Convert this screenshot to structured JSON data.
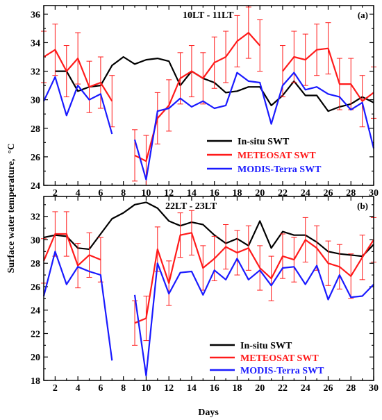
{
  "figure": {
    "ylabel": "Surface water temperature,",
    "ylabel_unit": "°C",
    "xlabel": "Days"
  },
  "colors": {
    "insitu": "#000000",
    "meteosat": "#ff1a1a",
    "modis": "#1a1aff",
    "error_bar": "#ff1a1a"
  },
  "chart_data": [
    {
      "type": "line",
      "title": "10LT - 11LT",
      "panel_tag": "(a)",
      "xlim": [
        1,
        30
      ],
      "ylim": [
        24,
        36.6
      ],
      "xticks": [
        2,
        4,
        6,
        8,
        10,
        12,
        14,
        16,
        18,
        20,
        22,
        24,
        26,
        28,
        30
      ],
      "yticks": [
        24,
        26,
        28,
        30,
        32,
        34,
        36
      ],
      "legend_position": "lower-right",
      "legend": [
        "In-situ SWT",
        "METEOSAT SWT",
        "MODIS-Terra SWT"
      ],
      "series": [
        {
          "name": "In-situ SWT",
          "x": [
            2,
            3,
            4,
            5,
            6,
            7,
            8,
            9,
            10,
            11,
            12,
            13,
            14,
            15,
            16,
            17,
            18,
            19,
            20,
            21,
            22,
            23,
            24,
            25,
            26,
            27,
            28,
            29,
            30
          ],
          "y": [
            32.0,
            32.0,
            30.6,
            30.9,
            31.0,
            32.4,
            33.0,
            32.5,
            32.8,
            32.9,
            32.7,
            31.0,
            32.0,
            31.5,
            31.2,
            30.5,
            30.6,
            30.9,
            30.9,
            29.6,
            30.3,
            31.3,
            30.3,
            30.3,
            29.2,
            29.5,
            29.7,
            30.2,
            29.8
          ]
        },
        {
          "name": "METEOSAT SWT",
          "segments": [
            {
              "x": [
                1,
                2,
                3,
                4,
                5,
                6,
                7
              ],
              "y": [
                33.0,
                33.5,
                32.0,
                32.9,
                30.9,
                31.2,
                29.9
              ],
              "err": [
                1.8,
                1.8,
                1.8,
                1.8,
                1.8,
                1.8,
                1.8
              ]
            },
            {
              "x": [
                9,
                10,
                11,
                12,
                13,
                14,
                15,
                16,
                17,
                18,
                19,
                20
              ],
              "y": [
                26.1,
                25.7,
                28.7,
                29.6,
                31.5,
                32.0,
                31.5,
                32.6,
                33.0,
                34.1,
                34.7,
                33.8
              ],
              "err": [
                1.8,
                1.8,
                1.8,
                1.8,
                1.8,
                1.8,
                1.8,
                1.8,
                1.8,
                1.8,
                1.8,
                1.8
              ]
            },
            {
              "x": [
                22,
                23,
                24,
                25,
                26,
                27,
                28,
                29,
                30
              ],
              "y": [
                32.0,
                33.0,
                32.8,
                33.5,
                33.6,
                31.1,
                31.1,
                29.9,
                30.5
              ],
              "err": [
                1.8,
                1.8,
                1.8,
                1.8,
                1.8,
                1.8,
                1.8,
                1.8,
                1.8
              ]
            }
          ]
        },
        {
          "name": "MODIS-Terra SWT",
          "segments": [
            {
              "x": [
                1,
                2,
                3,
                4,
                5,
                6,
                7
              ],
              "y": [
                29.9,
                31.6,
                28.9,
                31.0,
                30.0,
                30.4,
                27.6
              ]
            },
            {
              "x": [
                9,
                10,
                11,
                12,
                13,
                14,
                15,
                16,
                17,
                18,
                19,
                20,
                21,
                22,
                23,
                24,
                25,
                26,
                27,
                28,
                29,
                30
              ],
              "y": [
                27.2,
                24.4,
                29.2,
                29.4,
                30.1,
                29.5,
                29.9,
                29.4,
                29.6,
                31.9,
                31.3,
                31.2,
                28.3,
                31.0,
                31.9,
                30.7,
                30.9,
                30.4,
                30.2,
                29.3,
                29.8,
                26.6
              ]
            }
          ]
        }
      ]
    },
    {
      "type": "line",
      "title": "22LT - 23LT",
      "panel_tag": "(b)",
      "xlim": [
        1,
        30
      ],
      "ylim": [
        18,
        33.7
      ],
      "xticks": [
        2,
        4,
        6,
        8,
        10,
        12,
        14,
        16,
        18,
        20,
        22,
        24,
        26,
        28,
        30
      ],
      "yticks": [
        18,
        20,
        22,
        24,
        26,
        28,
        30,
        32
      ],
      "legend_position": "lower-right",
      "legend": [
        "In-situ SWT",
        "METEOSAT SWT",
        "MODIS-Terra SWT"
      ],
      "series": [
        {
          "name": "In-situ SWT",
          "x": [
            1,
            2,
            3,
            4,
            5,
            6,
            7,
            8,
            9,
            10,
            11,
            12,
            13,
            14,
            15,
            16,
            17,
            18,
            19,
            20,
            21,
            22,
            23,
            24,
            25,
            26,
            27,
            28,
            29,
            30
          ],
          "y": [
            30.2,
            30.4,
            30.3,
            29.3,
            29.2,
            30.5,
            31.8,
            32.3,
            33.0,
            33.2,
            32.7,
            31.6,
            31.2,
            31.5,
            31.3,
            30.4,
            29.7,
            30.1,
            29.5,
            31.6,
            29.3,
            30.7,
            30.4,
            30.4,
            29.8,
            29.0,
            28.8,
            28.7,
            28.6,
            29.6
          ]
        },
        {
          "name": "METEOSAT SWT",
          "segments": [
            {
              "x": [
                1,
                2,
                3,
                4,
                5,
                6
              ],
              "y": [
                28.2,
                30.5,
                30.5,
                27.8,
                28.7,
                28.3
              ],
              "err": [
                1.9,
                1.9,
                1.9,
                1.9,
                1.9,
                1.9
              ]
            },
            {
              "x": [
                9,
                10,
                11,
                12,
                13,
                14,
                15,
                16,
                17,
                18,
                19,
                20,
                21,
                22,
                23,
                24,
                25,
                26,
                27,
                28,
                29,
                30
              ],
              "y": [
                22.9,
                23.3,
                29.2,
                26.3,
                30.4,
                30.6,
                27.6,
                28.4,
                29.4,
                28.9,
                29.3,
                27.6,
                26.7,
                28.6,
                28.3,
                30.0,
                29.3,
                28.0,
                27.7,
                26.9,
                28.5,
                30.0
              ],
              "err": [
                1.9,
                1.9,
                1.9,
                1.9,
                1.9,
                1.9,
                1.9,
                1.9,
                1.9,
                1.9,
                1.9,
                1.9,
                1.9,
                1.9,
                1.9,
                1.9,
                1.9,
                1.9,
                1.9,
                1.9,
                1.9,
                1.9
              ]
            }
          ]
        },
        {
          "name": "MODIS-Terra SWT",
          "segments": [
            {
              "x": [
                1,
                2,
                3,
                4,
                5,
                6,
                7
              ],
              "y": [
                25.2,
                29.0,
                26.2,
                27.7,
                27.3,
                27.0,
                19.7
              ]
            },
            {
              "x": [
                9,
                10,
                11,
                12,
                13,
                14,
                15,
                16,
                17,
                18,
                19,
                20,
                21,
                22,
                23,
                24,
                25,
                26,
                27,
                28,
                29,
                30
              ],
              "y": [
                25.3,
                18.4,
                28.0,
                25.4,
                27.2,
                27.3,
                25.3,
                27.4,
                26.6,
                28.4,
                26.6,
                27.4,
                26.1,
                27.6,
                27.7,
                26.2,
                27.8,
                24.9,
                27.0,
                25.1,
                25.2,
                26.2
              ]
            }
          ]
        }
      ]
    }
  ]
}
